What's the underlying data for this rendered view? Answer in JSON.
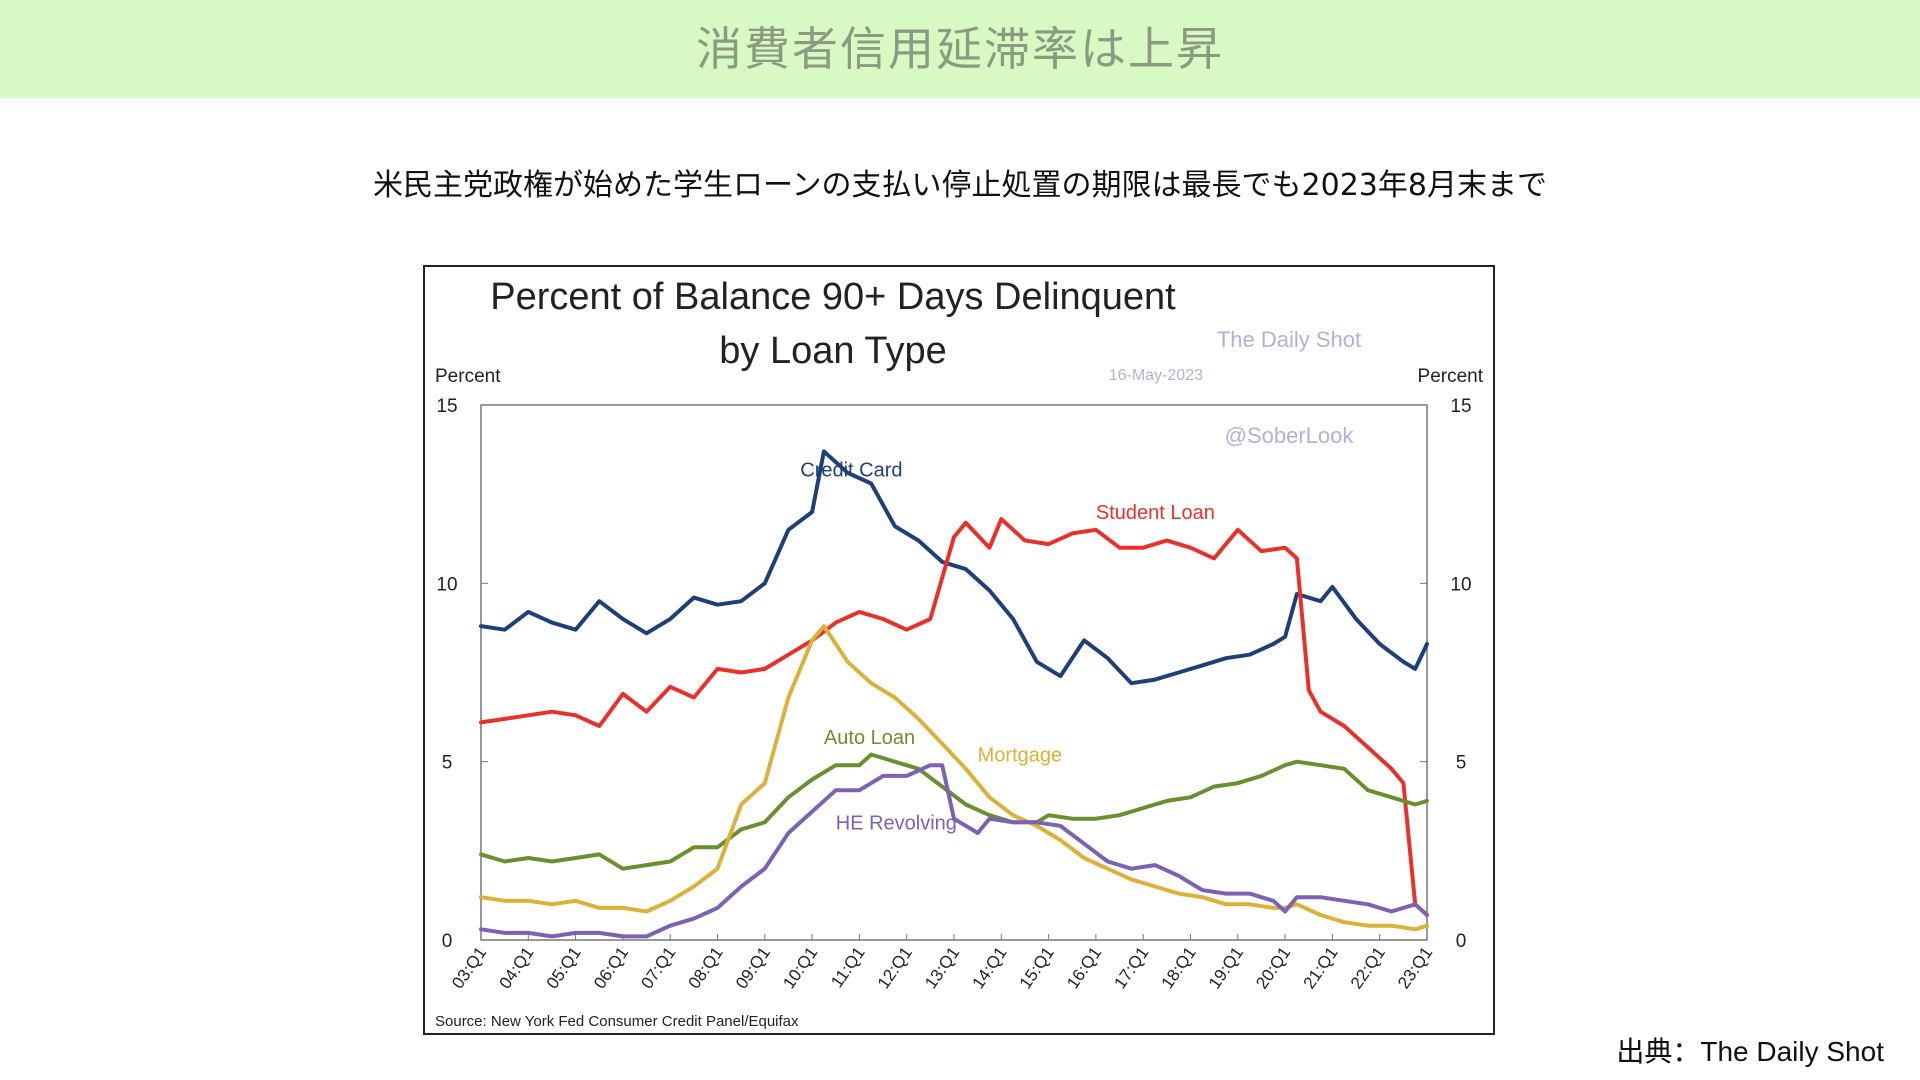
{
  "header": {
    "title": "消費者信用延滞率は上昇",
    "subtitle": "米民主党政権が始めた学生ローンの支払い停止処置の期限は最長でも2023年8月末まで"
  },
  "footer": {
    "credit": "出典：The Daily Shot"
  },
  "colors": {
    "banner_bg": "#d9f9c4",
    "credit_card": "#1f3f7a",
    "student_loan": "#e8312a",
    "auto_loan": "#6b8e2e",
    "mortgage": "#dbb13a",
    "he_revolving": "#7b62b4"
  },
  "chart_data": {
    "type": "line",
    "title": "Percent of Balance 90+ Days Delinquent",
    "title_line2": "by Loan Type",
    "ylabel_left": "Percent",
    "ylabel_right": "Percent",
    "ylim": [
      0,
      15
    ],
    "yticks": [
      0,
      5,
      10,
      15
    ],
    "x_start": "03:Q1",
    "x_end": "23:Q1",
    "xtick_labels": [
      "03:Q1",
      "04:Q1",
      "05:Q1",
      "06:Q1",
      "07:Q1",
      "08:Q1",
      "09:Q1",
      "10:Q1",
      "11:Q1",
      "12:Q1",
      "13:Q1",
      "14:Q1",
      "15:Q1",
      "16:Q1",
      "17:Q1",
      "18:Q1",
      "19:Q1",
      "20:Q1",
      "21:Q1",
      "22:Q1",
      "23:Q1"
    ],
    "grid": false,
    "source": "Source: New York Fed Consumer Credit Panel/Equifax",
    "watermark": [
      "The Daily Shot",
      "16-May-2023",
      "@SoberLook"
    ],
    "series": [
      {
        "name": "Credit Card",
        "color": "#1f3f7a",
        "label_at": [
          "09:Q4",
          13.0
        ],
        "points": [
          [
            "03:Q1",
            8.8
          ],
          [
            "03:Q3",
            8.7
          ],
          [
            "04:Q1",
            9.2
          ],
          [
            "04:Q3",
            8.9
          ],
          [
            "05:Q1",
            8.7
          ],
          [
            "05:Q3",
            9.5
          ],
          [
            "06:Q1",
            9.0
          ],
          [
            "06:Q3",
            8.6
          ],
          [
            "07:Q1",
            9.0
          ],
          [
            "07:Q3",
            9.6
          ],
          [
            "08:Q1",
            9.4
          ],
          [
            "08:Q3",
            9.5
          ],
          [
            "09:Q1",
            10.0
          ],
          [
            "09:Q3",
            11.5
          ],
          [
            "10:Q1",
            12.0
          ],
          [
            "10:Q2",
            13.7
          ],
          [
            "10:Q4",
            13.1
          ],
          [
            "11:Q2",
            12.8
          ],
          [
            "11:Q4",
            11.6
          ],
          [
            "12:Q2",
            11.2
          ],
          [
            "12:Q4",
            10.6
          ],
          [
            "13:Q2",
            10.4
          ],
          [
            "13:Q4",
            9.8
          ],
          [
            "14:Q2",
            9.0
          ],
          [
            "14:Q4",
            7.8
          ],
          [
            "15:Q2",
            7.4
          ],
          [
            "15:Q4",
            8.4
          ],
          [
            "16:Q2",
            7.9
          ],
          [
            "16:Q4",
            7.2
          ],
          [
            "17:Q2",
            7.3
          ],
          [
            "17:Q4",
            7.5
          ],
          [
            "18:Q2",
            7.7
          ],
          [
            "18:Q4",
            7.9
          ],
          [
            "19:Q2",
            8.0
          ],
          [
            "19:Q4",
            8.3
          ],
          [
            "20:Q1",
            8.5
          ],
          [
            "20:Q2",
            9.7
          ],
          [
            "20:Q4",
            9.5
          ],
          [
            "21:Q1",
            9.9
          ],
          [
            "21:Q3",
            9.0
          ],
          [
            "22:Q1",
            8.3
          ],
          [
            "22:Q3",
            7.8
          ],
          [
            "22:Q4",
            7.6
          ],
          [
            "23:Q1",
            8.3
          ]
        ]
      },
      {
        "name": "Student Loan",
        "color": "#e8312a",
        "label_at": [
          "16:Q1",
          11.8
        ],
        "points": [
          [
            "03:Q1",
            6.1
          ],
          [
            "03:Q3",
            6.2
          ],
          [
            "04:Q1",
            6.3
          ],
          [
            "04:Q3",
            6.4
          ],
          [
            "05:Q1",
            6.3
          ],
          [
            "05:Q3",
            6.0
          ],
          [
            "06:Q1",
            6.9
          ],
          [
            "06:Q3",
            6.4
          ],
          [
            "07:Q1",
            7.1
          ],
          [
            "07:Q3",
            6.8
          ],
          [
            "08:Q1",
            7.6
          ],
          [
            "08:Q3",
            7.5
          ],
          [
            "09:Q1",
            7.6
          ],
          [
            "09:Q3",
            8.0
          ],
          [
            "10:Q1",
            8.4
          ],
          [
            "10:Q3",
            8.9
          ],
          [
            "11:Q1",
            9.2
          ],
          [
            "11:Q3",
            9.0
          ],
          [
            "12:Q1",
            8.7
          ],
          [
            "12:Q3",
            9.0
          ],
          [
            "13:Q1",
            11.3
          ],
          [
            "13:Q2",
            11.7
          ],
          [
            "13:Q4",
            11.0
          ],
          [
            "14:Q1",
            11.8
          ],
          [
            "14:Q3",
            11.2
          ],
          [
            "15:Q1",
            11.1
          ],
          [
            "15:Q3",
            11.4
          ],
          [
            "16:Q1",
            11.5
          ],
          [
            "16:Q3",
            11.0
          ],
          [
            "17:Q1",
            11.0
          ],
          [
            "17:Q3",
            11.2
          ],
          [
            "18:Q1",
            11.0
          ],
          [
            "18:Q3",
            10.7
          ],
          [
            "19:Q1",
            11.5
          ],
          [
            "19:Q3",
            10.9
          ],
          [
            "20:Q1",
            11.0
          ],
          [
            "20:Q2",
            10.7
          ],
          [
            "20:Q3",
            7.0
          ],
          [
            "20:Q4",
            6.4
          ],
          [
            "21:Q2",
            6.0
          ],
          [
            "21:Q4",
            5.4
          ],
          [
            "22:Q2",
            4.8
          ],
          [
            "22:Q3",
            4.4
          ],
          [
            "22:Q4",
            1.0
          ],
          [
            "23:Q1",
            0.7
          ]
        ]
      },
      {
        "name": "Auto Loan",
        "color": "#6b8e2e",
        "label_at": [
          "10:Q2",
          5.5
        ],
        "points": [
          [
            "03:Q1",
            2.4
          ],
          [
            "03:Q3",
            2.2
          ],
          [
            "04:Q1",
            2.3
          ],
          [
            "04:Q3",
            2.2
          ],
          [
            "05:Q1",
            2.3
          ],
          [
            "05:Q3",
            2.4
          ],
          [
            "06:Q1",
            2.0
          ],
          [
            "06:Q3",
            2.1
          ],
          [
            "07:Q1",
            2.2
          ],
          [
            "07:Q3",
            2.6
          ],
          [
            "08:Q1",
            2.6
          ],
          [
            "08:Q3",
            3.1
          ],
          [
            "09:Q1",
            3.3
          ],
          [
            "09:Q3",
            4.0
          ],
          [
            "10:Q1",
            4.5
          ],
          [
            "10:Q3",
            4.9
          ],
          [
            "11:Q1",
            4.9
          ],
          [
            "11:Q2",
            5.2
          ],
          [
            "11:Q4",
            5.0
          ],
          [
            "12:Q2",
            4.8
          ],
          [
            "12:Q4",
            4.3
          ],
          [
            "13:Q2",
            3.8
          ],
          [
            "13:Q4",
            3.5
          ],
          [
            "14:Q2",
            3.3
          ],
          [
            "14:Q4",
            3.3
          ],
          [
            "15:Q1",
            3.5
          ],
          [
            "15:Q3",
            3.4
          ],
          [
            "16:Q1",
            3.4
          ],
          [
            "16:Q3",
            3.5
          ],
          [
            "17:Q1",
            3.7
          ],
          [
            "17:Q3",
            3.9
          ],
          [
            "18:Q1",
            4.0
          ],
          [
            "18:Q3",
            4.3
          ],
          [
            "19:Q1",
            4.4
          ],
          [
            "19:Q3",
            4.6
          ],
          [
            "20:Q1",
            4.9
          ],
          [
            "20:Q2",
            5.0
          ],
          [
            "20:Q4",
            4.9
          ],
          [
            "21:Q2",
            4.8
          ],
          [
            "21:Q4",
            4.2
          ],
          [
            "22:Q2",
            4.0
          ],
          [
            "22:Q4",
            3.8
          ],
          [
            "23:Q1",
            3.9
          ]
        ]
      },
      {
        "name": "Mortgage",
        "color": "#dbb13a",
        "label_at": [
          "13:Q3",
          5.0
        ],
        "points": [
          [
            "03:Q1",
            1.2
          ],
          [
            "03:Q3",
            1.1
          ],
          [
            "04:Q1",
            1.1
          ],
          [
            "04:Q3",
            1.0
          ],
          [
            "05:Q1",
            1.1
          ],
          [
            "05:Q3",
            0.9
          ],
          [
            "06:Q1",
            0.9
          ],
          [
            "06:Q3",
            0.8
          ],
          [
            "07:Q1",
            1.1
          ],
          [
            "07:Q3",
            1.5
          ],
          [
            "08:Q1",
            2.0
          ],
          [
            "08:Q3",
            3.8
          ],
          [
            "09:Q1",
            4.4
          ],
          [
            "09:Q3",
            6.8
          ],
          [
            "10:Q1",
            8.4
          ],
          [
            "10:Q2",
            8.8
          ],
          [
            "10:Q4",
            7.8
          ],
          [
            "11:Q2",
            7.2
          ],
          [
            "11:Q4",
            6.8
          ],
          [
            "12:Q2",
            6.2
          ],
          [
            "12:Q4",
            5.5
          ],
          [
            "13:Q2",
            4.8
          ],
          [
            "13:Q4",
            4.0
          ],
          [
            "14:Q2",
            3.5
          ],
          [
            "14:Q4",
            3.2
          ],
          [
            "15:Q2",
            2.8
          ],
          [
            "15:Q4",
            2.3
          ],
          [
            "16:Q2",
            2.0
          ],
          [
            "16:Q4",
            1.7
          ],
          [
            "17:Q2",
            1.5
          ],
          [
            "17:Q4",
            1.3
          ],
          [
            "18:Q2",
            1.2
          ],
          [
            "18:Q4",
            1.0
          ],
          [
            "19:Q2",
            1.0
          ],
          [
            "19:Q4",
            0.9
          ],
          [
            "20:Q1",
            0.9
          ],
          [
            "20:Q2",
            1.0
          ],
          [
            "20:Q4",
            0.7
          ],
          [
            "21:Q2",
            0.5
          ],
          [
            "21:Q4",
            0.4
          ],
          [
            "22:Q2",
            0.4
          ],
          [
            "22:Q4",
            0.3
          ],
          [
            "23:Q1",
            0.4
          ]
        ]
      },
      {
        "name": "HE Revolving",
        "color": "#7b62b4",
        "label_at": [
          "10:Q3",
          3.1
        ],
        "points": [
          [
            "03:Q1",
            0.3
          ],
          [
            "03:Q3",
            0.2
          ],
          [
            "04:Q1",
            0.2
          ],
          [
            "04:Q3",
            0.1
          ],
          [
            "05:Q1",
            0.2
          ],
          [
            "05:Q3",
            0.2
          ],
          [
            "06:Q1",
            0.1
          ],
          [
            "06:Q3",
            0.1
          ],
          [
            "07:Q1",
            0.4
          ],
          [
            "07:Q3",
            0.6
          ],
          [
            "08:Q1",
            0.9
          ],
          [
            "08:Q3",
            1.5
          ],
          [
            "09:Q1",
            2.0
          ],
          [
            "09:Q3",
            3.0
          ],
          [
            "10:Q1",
            3.6
          ],
          [
            "10:Q3",
            4.2
          ],
          [
            "11:Q1",
            4.2
          ],
          [
            "11:Q3",
            4.6
          ],
          [
            "12:Q1",
            4.6
          ],
          [
            "12:Q3",
            4.9
          ],
          [
            "12:Q4",
            4.9
          ],
          [
            "13:Q1",
            3.4
          ],
          [
            "13:Q3",
            3.0
          ],
          [
            "13:Q4",
            3.4
          ],
          [
            "14:Q2",
            3.3
          ],
          [
            "14:Q4",
            3.3
          ],
          [
            "15:Q2",
            3.2
          ],
          [
            "15:Q4",
            2.7
          ],
          [
            "16:Q2",
            2.2
          ],
          [
            "16:Q4",
            2.0
          ],
          [
            "17:Q2",
            2.1
          ],
          [
            "17:Q4",
            1.8
          ],
          [
            "18:Q2",
            1.4
          ],
          [
            "18:Q4",
            1.3
          ],
          [
            "19:Q2",
            1.3
          ],
          [
            "19:Q4",
            1.1
          ],
          [
            "20:Q1",
            0.8
          ],
          [
            "20:Q2",
            1.2
          ],
          [
            "20:Q4",
            1.2
          ],
          [
            "21:Q2",
            1.1
          ],
          [
            "21:Q4",
            1.0
          ],
          [
            "22:Q2",
            0.8
          ],
          [
            "22:Q4",
            1.0
          ],
          [
            "23:Q1",
            0.7
          ]
        ]
      }
    ]
  }
}
